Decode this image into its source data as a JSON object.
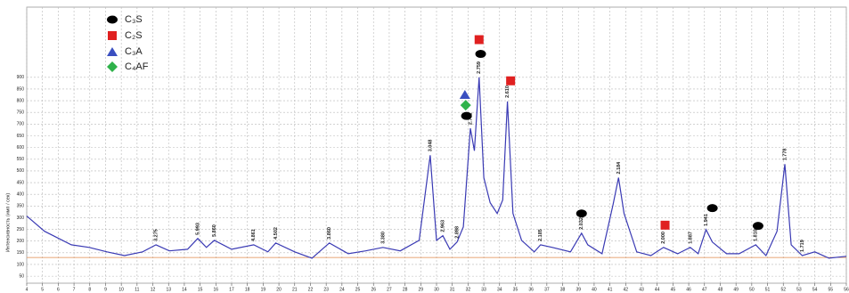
{
  "chart_data": {
    "type": "line",
    "y_label": "Интенсивность (имп / сек)",
    "color": "#3a3ab4",
    "x": [
      4,
      5.13,
      6.83,
      7.96,
      9.09,
      10.2,
      11.35,
      12.2,
      13.05,
      14.2,
      14.85,
      15.4,
      15.9,
      17.0,
      18.4,
      19.3,
      19.8,
      21.0,
      22.1,
      23.2,
      24.4,
      25.5,
      26.6,
      27.7,
      28.9,
      29.6,
      30.0,
      30.4,
      30.85,
      31.3,
      31.7,
      32.15,
      32.4,
      32.7,
      33.0,
      33.4,
      33.85,
      34.2,
      34.5,
      34.85,
      35.4,
      36.2,
      36.6,
      37.35,
      38.5,
      39.2,
      39.6,
      40.5,
      41.2,
      41.55,
      41.9,
      42.7,
      43.6,
      44.4,
      45.3,
      46.1,
      46.6,
      47.1,
      47.5,
      48.4,
      49.2,
      50.25,
      50.9,
      51.6,
      52.1,
      52.5,
      53.2,
      54.0,
      54.9,
      56.0
    ],
    "values": [
      307,
      242,
      184,
      173,
      154,
      138,
      154,
      184,
      158,
      165,
      211,
      173,
      203,
      165,
      184,
      154,
      192,
      154,
      127,
      192,
      146,
      158,
      173,
      158,
      203,
      567,
      203,
      223,
      165,
      196,
      261,
      682,
      586,
      900,
      471,
      364,
      318,
      376,
      797,
      318,
      203,
      154,
      184,
      173,
      154,
      234,
      184,
      146,
      357,
      471,
      318,
      154,
      138,
      173,
      146,
      173,
      146,
      249,
      196,
      146,
      146,
      184,
      138,
      242,
      529,
      184,
      138,
      154,
      127,
      135
    ],
    "baseline": 130,
    "baseline_color": "#e0884a",
    "xlim": [
      4,
      56
    ],
    "ylim": [
      20,
      1200
    ],
    "xticks": [
      4,
      5,
      6,
      7,
      8,
      9,
      10,
      11,
      12,
      13,
      14,
      15,
      16,
      17,
      18,
      19,
      20,
      21,
      22,
      23,
      24,
      25,
      26,
      27,
      28,
      29,
      30,
      31,
      32,
      33,
      34,
      35,
      36,
      37,
      38,
      39,
      40,
      41,
      42,
      43,
      44,
      45,
      46,
      47,
      48,
      49,
      50,
      51,
      52,
      53,
      54,
      55,
      56
    ],
    "yticks": [
      50,
      100,
      150,
      200,
      250,
      300,
      350,
      400,
      450,
      500,
      550,
      600,
      650,
      700,
      750,
      800,
      850,
      900
    ],
    "grid": true,
    "annotations": [
      {
        "label": "3.275",
        "x": 12.2,
        "y": 184
      },
      {
        "label": "5.993",
        "x": 14.85,
        "y": 211
      },
      {
        "label": "5.860",
        "x": 15.9,
        "y": 203
      },
      {
        "label": "4.861",
        "x": 18.4,
        "y": 184
      },
      {
        "label": "4.502",
        "x": 19.8,
        "y": 192
      },
      {
        "label": "3.860",
        "x": 23.2,
        "y": 192
      },
      {
        "label": "3.380",
        "x": 26.6,
        "y": 173
      },
      {
        "label": "3.048",
        "x": 29.6,
        "y": 567
      },
      {
        "label": "2.963",
        "x": 30.4,
        "y": 223
      },
      {
        "label": "2.898",
        "x": 31.3,
        "y": 196
      },
      {
        "label": "2.781",
        "x": 32.15,
        "y": 682
      },
      {
        "label": "2.759",
        "x": 32.7,
        "y": 900
      },
      {
        "label": "2.610",
        "x": 34.5,
        "y": 797
      },
      {
        "label": "2.185",
        "x": 36.6,
        "y": 184
      },
      {
        "label": "2.032",
        "x": 39.2,
        "y": 234
      },
      {
        "label": "2.184",
        "x": 41.55,
        "y": 471
      },
      {
        "label": "2.000",
        "x": 44.4,
        "y": 173
      },
      {
        "label": "1.887",
        "x": 46.1,
        "y": 173
      },
      {
        "label": "1.941",
        "x": 47.1,
        "y": 249
      },
      {
        "label": "1.810",
        "x": 50.25,
        "y": 184
      },
      {
        "label": "1.778",
        "x": 52.1,
        "y": 529
      },
      {
        "label": "1.719",
        "x": 53.2,
        "y": 138
      }
    ],
    "phases": [
      {
        "name": "C₃S",
        "color": "#000000",
        "shape": "ellipse"
      },
      {
        "name": "C₂S",
        "color": "#e02020",
        "shape": "square"
      },
      {
        "name": "C₃A",
        "color": "#3a4fc0",
        "shape": "triangle"
      },
      {
        "name": "C₄AF",
        "color": "#2fb24a",
        "shape": "diamond"
      }
    ],
    "phase_markers": [
      {
        "phase": 0,
        "x": 32.8,
        "y": 1000
      },
      {
        "phase": 0,
        "x": 31.9,
        "y": 735
      },
      {
        "phase": 0,
        "x": 39.2,
        "y": 318
      },
      {
        "phase": 0,
        "x": 47.5,
        "y": 341
      },
      {
        "phase": 0,
        "x": 50.4,
        "y": 265
      },
      {
        "phase": 1,
        "x": 32.7,
        "y": 1061
      },
      {
        "phase": 1,
        "x": 34.7,
        "y": 885
      },
      {
        "phase": 1,
        "x": 44.5,
        "y": 268
      },
      {
        "phase": 2,
        "x": 31.8,
        "y": 827
      },
      {
        "phase": 3,
        "x": 31.85,
        "y": 781
      }
    ]
  }
}
